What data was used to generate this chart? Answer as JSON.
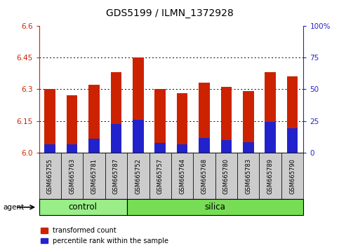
{
  "title": "GDS5199 / ILMN_1372928",
  "samples": [
    "GSM665755",
    "GSM665763",
    "GSM665781",
    "GSM665787",
    "GSM665752",
    "GSM665757",
    "GSM665764",
    "GSM665768",
    "GSM665780",
    "GSM665783",
    "GSM665789",
    "GSM665790"
  ],
  "groups": [
    "control",
    "control",
    "control",
    "control",
    "silica",
    "silica",
    "silica",
    "silica",
    "silica",
    "silica",
    "silica",
    "silica"
  ],
  "red_values": [
    6.3,
    6.27,
    6.32,
    6.38,
    6.45,
    6.3,
    6.28,
    6.33,
    6.31,
    6.29,
    6.38,
    6.36
  ],
  "blue_values": [
    6.04,
    6.04,
    6.065,
    6.135,
    6.155,
    6.045,
    6.04,
    6.07,
    6.06,
    6.05,
    6.145,
    6.115
  ],
  "ymin": 6.0,
  "ymax": 6.6,
  "yticks_left": [
    6.0,
    6.15,
    6.3,
    6.45,
    6.6
  ],
  "yticks_right_vals": [
    0,
    25,
    50,
    75,
    100
  ],
  "yticks_right_labels": [
    "0",
    "25",
    "50",
    "75",
    "100%"
  ],
  "bar_width": 0.5,
  "red_color": "#cc2200",
  "blue_color": "#2222cc",
  "control_color": "#99ee88",
  "silica_color": "#77dd55",
  "tick_bg_color": "#cccccc",
  "legend_red": "transformed count",
  "legend_blue": "percentile rank within the sample",
  "agent_label": "agent",
  "control_label": "control",
  "silica_label": "silica",
  "n_control": 4,
  "n_silica": 8
}
